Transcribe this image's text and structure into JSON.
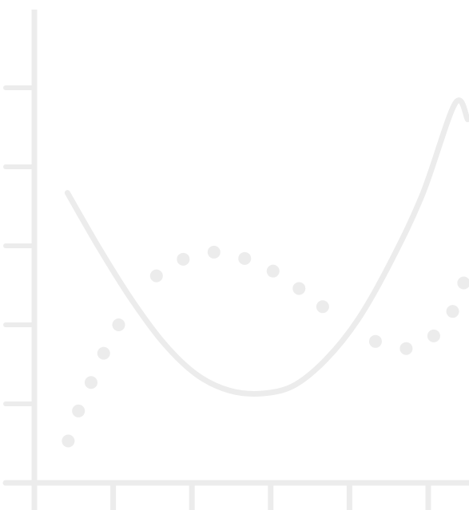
{
  "chart_data": {
    "type": "scatter",
    "title": "",
    "xlabel": "",
    "ylabel": "",
    "xlim": [
      0,
      5.5
    ],
    "ylim": [
      0,
      6
    ],
    "x_ticks": [
      1,
      2,
      3,
      4,
      5
    ],
    "y_ticks": [
      1,
      2,
      3,
      4,
      5
    ],
    "tick_labels_shown": false,
    "grid": false,
    "legend": "none",
    "colors": {
      "axis": "#ececec",
      "marker": "#ececec",
      "curve": "#ececec",
      "background": "#ffffff"
    },
    "series": [
      {
        "kind": "points",
        "x": [
          0.43,
          0.56,
          0.72,
          0.88,
          1.07,
          1.55,
          1.89,
          2.28,
          2.67,
          3.03,
          3.36,
          3.66,
          4.33,
          4.72,
          5.07,
          5.31,
          5.45
        ],
        "y": [
          0.53,
          0.91,
          1.27,
          1.64,
          2.0,
          2.62,
          2.83,
          2.92,
          2.84,
          2.68,
          2.46,
          2.23,
          1.79,
          1.7,
          1.86,
          2.17,
          2.53
        ]
      },
      {
        "kind": "curve",
        "x": [
          0.42,
          0.83,
          1.24,
          1.65,
          2.06,
          2.47,
          2.88,
          3.29,
          3.7,
          4.11,
          4.52,
          4.93,
          5.34,
          5.5
        ],
        "y": [
          3.67,
          2.96,
          2.31,
          1.76,
          1.37,
          1.17,
          1.13,
          1.23,
          1.56,
          2.07,
          2.79,
          3.66,
          4.8,
          4.6
        ]
      }
    ]
  }
}
